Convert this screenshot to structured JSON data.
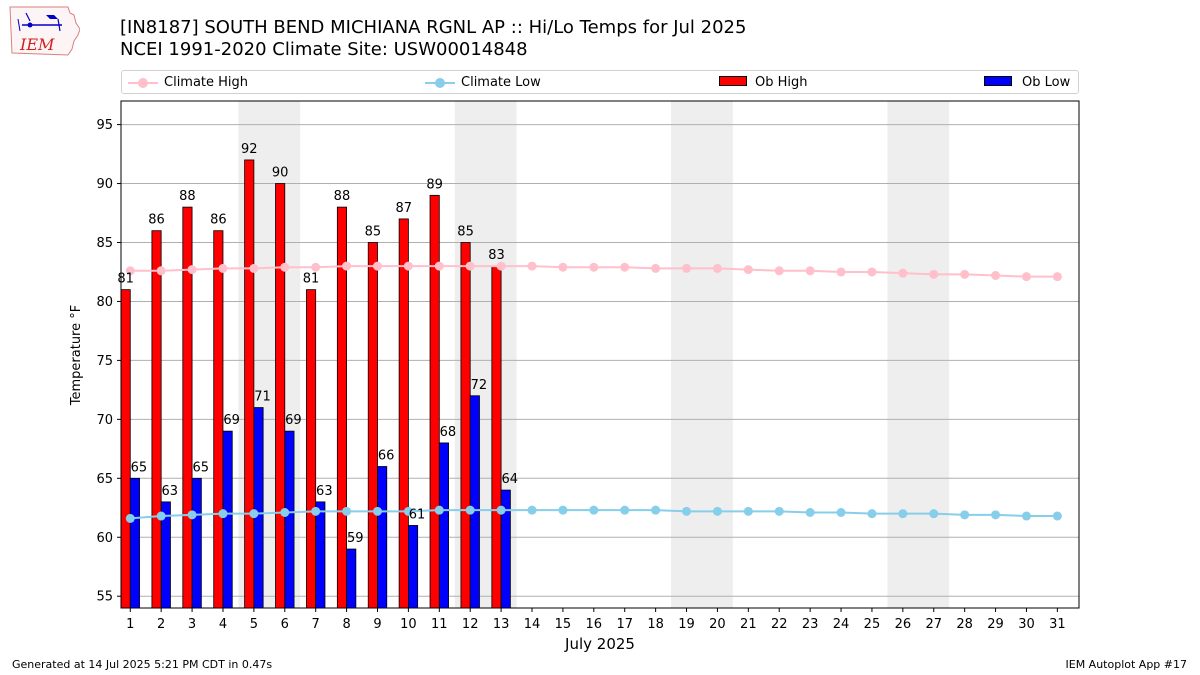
{
  "header": {
    "title_line1": "[IN8187] SOUTH BEND MICHIANA RGNL AP :: Hi/Lo Temps for Jul 2025",
    "title_line2": "NCEI 1991-2020 Climate Site: USW00014848"
  },
  "logo": {
    "text": "IEM"
  },
  "legend": {
    "climate_high": "Climate High",
    "climate_low": "Climate Low",
    "ob_high": "Ob High",
    "ob_low": "Ob Low"
  },
  "footer": {
    "left": "Generated at 14 Jul 2025 5:21 PM CDT in 0.47s",
    "right": "IEM Autoplot App #17"
  },
  "colors": {
    "ob_high": "#ff0000",
    "ob_low": "#0000ff",
    "climate_high": "#ffc0cb",
    "climate_low": "#87ceeb",
    "weekend_shade": "#eeeeee",
    "grid": "#b0b0b0"
  },
  "chart_data": {
    "type": "bar",
    "xlabel": "July 2025",
    "ylabel": "Temperature °F",
    "ylim": [
      54,
      97
    ],
    "yticks": [
      55,
      60,
      65,
      70,
      75,
      80,
      85,
      90,
      95
    ],
    "grid": "horizontal",
    "legend_position": "top",
    "days": [
      1,
      2,
      3,
      4,
      5,
      6,
      7,
      8,
      9,
      10,
      11,
      12,
      13,
      14,
      15,
      16,
      17,
      18,
      19,
      20,
      21,
      22,
      23,
      24,
      25,
      26,
      27,
      28,
      29,
      30,
      31
    ],
    "weekend_pairs": [
      [
        5,
        6
      ],
      [
        12,
        13
      ],
      [
        19,
        20
      ],
      [
        26,
        27
      ]
    ],
    "series": [
      {
        "name": "Ob High",
        "kind": "bar",
        "values": [
          81,
          86,
          88,
          86,
          92,
          90,
          81,
          88,
          85,
          87,
          89,
          85,
          83
        ]
      },
      {
        "name": "Ob Low",
        "kind": "bar",
        "values": [
          65,
          63,
          65,
          69,
          71,
          69,
          63,
          59,
          66,
          61,
          68,
          72,
          64
        ]
      },
      {
        "name": "Climate High",
        "kind": "line",
        "values": [
          82.6,
          82.6,
          82.7,
          82.8,
          82.8,
          82.9,
          82.9,
          83.0,
          83.0,
          83.0,
          83.0,
          83.0,
          83.0,
          83.0,
          82.9,
          82.9,
          82.9,
          82.8,
          82.8,
          82.8,
          82.7,
          82.6,
          82.6,
          82.5,
          82.5,
          82.4,
          82.3,
          82.3,
          82.2,
          82.1,
          82.1
        ]
      },
      {
        "name": "Climate Low",
        "kind": "line",
        "values": [
          61.6,
          61.8,
          61.9,
          62.0,
          62.0,
          62.1,
          62.2,
          62.2,
          62.2,
          62.2,
          62.3,
          62.3,
          62.3,
          62.3,
          62.3,
          62.3,
          62.3,
          62.3,
          62.2,
          62.2,
          62.2,
          62.2,
          62.1,
          62.1,
          62.0,
          62.0,
          62.0,
          61.9,
          61.9,
          61.8,
          61.8
        ]
      }
    ]
  }
}
